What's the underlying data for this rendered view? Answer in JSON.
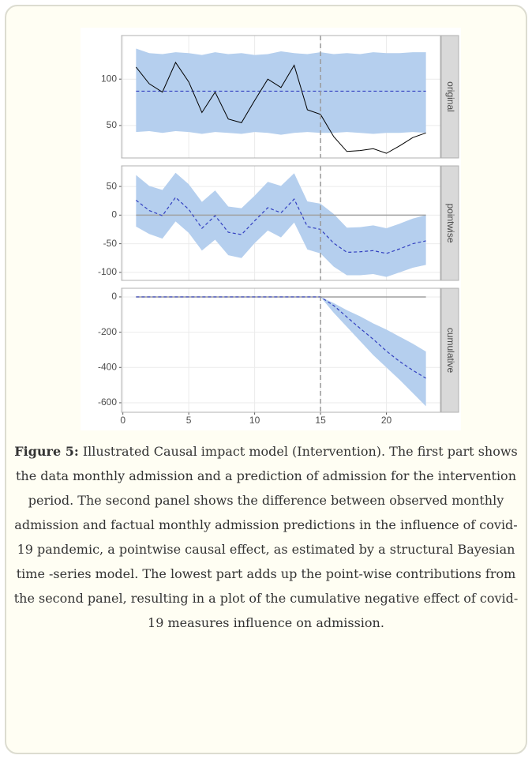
{
  "chart_data": [
    {
      "type": "line",
      "strip": "original",
      "band_color": "#b5cfee",
      "line_color": "#000000",
      "mean_color": "#3340c0",
      "x": [
        1,
        2,
        3,
        4,
        5,
        6,
        7,
        8,
        9,
        10,
        11,
        12,
        13,
        14,
        15,
        16,
        17,
        18,
        19,
        20,
        21,
        22,
        23
      ],
      "observed": [
        113,
        95,
        86,
        118,
        97,
        64,
        86,
        57,
        53,
        77,
        100,
        91,
        115,
        67,
        62,
        38,
        22,
        23,
        25,
        20,
        28,
        37,
        42
      ],
      "predicted": [
        87,
        87,
        87,
        87,
        87,
        87,
        87,
        87,
        87,
        87,
        87,
        87,
        87,
        87,
        87,
        87,
        87,
        87,
        87,
        87,
        87,
        87,
        87
      ],
      "lower": [
        43,
        44,
        42,
        44,
        43,
        41,
        43,
        42,
        41,
        43,
        42,
        40,
        42,
        43,
        42,
        42,
        43,
        42,
        41,
        42,
        42,
        43,
        42
      ],
      "upper": [
        133,
        128,
        127,
        129,
        128,
        126,
        129,
        127,
        128,
        126,
        127,
        130,
        128,
        127,
        129,
        127,
        128,
        127,
        129,
        128,
        128,
        129,
        129
      ],
      "vline": 15,
      "xlim": [
        -0.1,
        24.1
      ],
      "xticks": [
        0,
        5,
        10,
        15,
        20
      ],
      "ylim": [
        15,
        147
      ],
      "yticks": [
        50,
        100
      ],
      "grid": true
    },
    {
      "type": "line",
      "strip": "pointwise",
      "band_color": "#b5cfee",
      "mean_color": "#3340c0",
      "baseline_color": "#a0a0a0",
      "x": [
        1,
        2,
        3,
        4,
        5,
        6,
        7,
        8,
        9,
        10,
        11,
        12,
        13,
        14,
        15,
        16,
        17,
        18,
        19,
        20,
        21,
        22,
        23
      ],
      "predicted": [
        26,
        8,
        -1,
        31,
        10,
        -23,
        -1,
        -30,
        -34,
        -10,
        13,
        4,
        28,
        -20,
        -25,
        -49,
        -65,
        -64,
        -62,
        -67,
        -59,
        -50,
        -45
      ],
      "lower": [
        -20,
        -33,
        -41,
        -11,
        -31,
        -62,
        -43,
        -70,
        -75,
        -49,
        -27,
        -39,
        -13,
        -60,
        -67,
        -90,
        -105,
        -105,
        -103,
        -108,
        -100,
        -92,
        -87
      ],
      "upper": [
        70,
        51,
        44,
        74,
        54,
        23,
        43,
        15,
        12,
        34,
        58,
        51,
        73,
        24,
        20,
        2,
        -22,
        -21,
        -18,
        -23,
        -15,
        -6,
        0
      ],
      "baseline": 0,
      "vline": 15,
      "xlim": [
        -0.1,
        24.1
      ],
      "xticks": [
        0,
        5,
        10,
        15,
        20
      ],
      "ylim": [
        -114,
        86
      ],
      "yticks": [
        -100,
        -50,
        0,
        50
      ],
      "grid": true
    },
    {
      "type": "line",
      "strip": "cumulative",
      "band_color": "#b5cfee",
      "mean_color": "#3340c0",
      "baseline_color": "#a0a0a0",
      "x": [
        1,
        2,
        3,
        4,
        5,
        6,
        7,
        8,
        9,
        10,
        11,
        12,
        13,
        14,
        15,
        16,
        17,
        18,
        19,
        20,
        21,
        22,
        23
      ],
      "predicted": [
        0,
        0,
        0,
        0,
        0,
        0,
        0,
        0,
        0,
        0,
        0,
        0,
        0,
        0,
        0,
        -49,
        -114,
        -178,
        -240,
        -307,
        -366,
        -416,
        -461
      ],
      "lower": [
        0,
        0,
        0,
        0,
        0,
        0,
        0,
        0,
        0,
        0,
        0,
        0,
        0,
        0,
        0,
        -90,
        -170,
        -250,
        -330,
        -400,
        -470,
        -545,
        -620
      ],
      "upper": [
        0,
        0,
        0,
        0,
        0,
        0,
        0,
        0,
        0,
        0,
        0,
        0,
        0,
        0,
        0,
        -35,
        -75,
        -110,
        -150,
        -185,
        -225,
        -265,
        -310
      ],
      "baseline": 0,
      "vline": 15,
      "xlim": [
        -0.1,
        24.1
      ],
      "xticks": [
        0,
        5,
        10,
        15,
        20
      ],
      "ylim": [
        -654,
        49
      ],
      "yticks": [
        -600,
        -400,
        -200,
        0
      ],
      "grid": true,
      "show_x_labels": true
    }
  ],
  "caption": {
    "label": "Figure 5:",
    "text": "Illustrated Causal impact model (Intervention). The first part shows the data monthly admission and a prediction of admission for the intervention period. The second panel shows the difference between observed monthly admission and factual monthly admission predictions in the influence of covid-19 pandemic, a pointwise causal effect, as estimated by a structural Bayesian time -series model. The lowest part adds up the point-wise contributions from the second panel, resulting in a plot of the cumulative negative effect of covid-19 measures influence on admission."
  }
}
